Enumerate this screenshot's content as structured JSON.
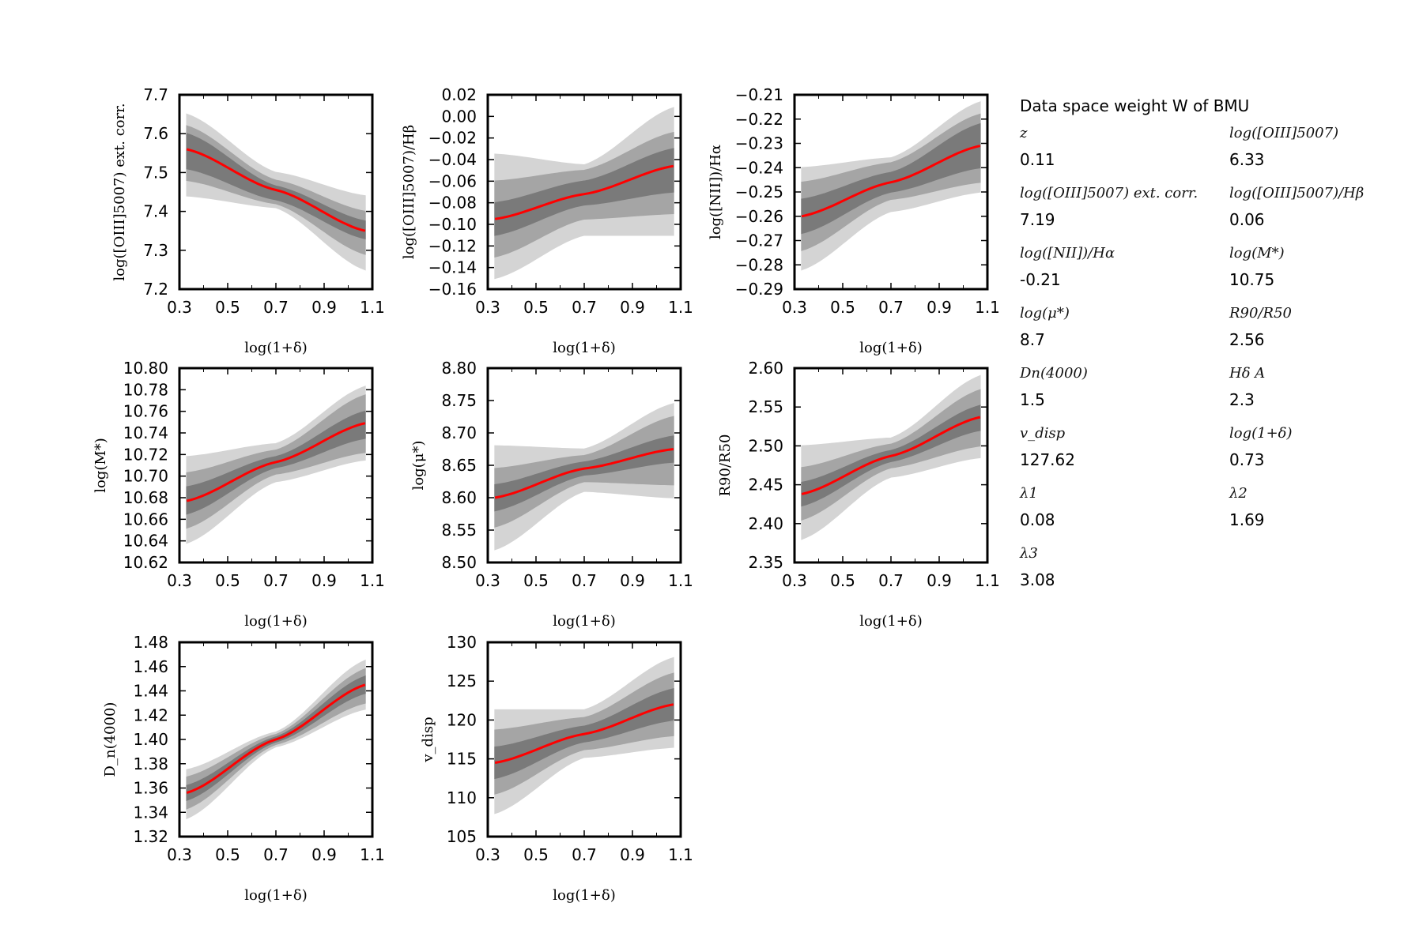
{
  "chart_data": [
    {
      "type": "line",
      "ylabel": "log([OIII]5007) ext. corr.",
      "xlabel": "log(1+δ)",
      "xlim": [
        0.3,
        1.1
      ],
      "xticks": [
        "0.3",
        "0.5",
        "0.7",
        "0.9",
        "1.1"
      ],
      "ylim": [
        7.2,
        7.7
      ],
      "yticks": [
        "7.2",
        "7.3",
        "7.4",
        "7.5",
        "7.6",
        "7.7"
      ],
      "series": [
        {
          "name": "mean",
          "x": [
            0.33,
            0.7,
            1.07
          ],
          "values": [
            7.56,
            7.455,
            7.35
          ]
        }
      ],
      "bands": {
        "x": [
          0.33,
          0.7,
          1.07
        ],
        "s1": {
          "lo": [
            7.51,
            7.43,
            7.33
          ],
          "hi": [
            7.6,
            7.465,
            7.375
          ]
        },
        "s2": {
          "lo": [
            7.48,
            7.42,
            7.29
          ],
          "hi": [
            7.62,
            7.48,
            7.4
          ]
        },
        "s3": {
          "lo": [
            7.44,
            7.41,
            7.25
          ],
          "hi": [
            7.65,
            7.5,
            7.44
          ]
        }
      }
    },
    {
      "type": "line",
      "ylabel": "log([OIII]5007)/Hβ",
      "xlabel": "log(1+δ)",
      "xlim": [
        0.3,
        1.1
      ],
      "xticks": [
        "0.3",
        "0.5",
        "0.7",
        "0.9",
        "1.1"
      ],
      "ylim": [
        -0.16,
        0.02
      ],
      "yticks": [
        "-0.16",
        "-0.14",
        "-0.12",
        "-0.10",
        "-0.08",
        "-0.06",
        "-0.04",
        "-0.02",
        "0.00",
        "0.02"
      ],
      "series": [
        {
          "name": "mean",
          "x": [
            0.33,
            0.7,
            1.07
          ],
          "values": [
            -0.095,
            -0.072,
            -0.046
          ]
        }
      ],
      "bands": {
        "x": [
          0.33,
          0.7,
          1.07
        ],
        "s1": {
          "lo": [
            -0.11,
            -0.082,
            -0.07
          ],
          "hi": [
            -0.08,
            -0.06,
            -0.03
          ]
        },
        "s2": {
          "lo": [
            -0.13,
            -0.095,
            -0.09
          ],
          "hi": [
            -0.06,
            -0.05,
            -0.015
          ]
        },
        "s3": {
          "lo": [
            -0.15,
            -0.11,
            -0.11
          ],
          "hi": [
            -0.035,
            -0.045,
            0.008
          ]
        }
      }
    },
    {
      "type": "line",
      "ylabel": "log([NII])/Hα",
      "xlabel": "log(1+δ)",
      "xlim": [
        0.3,
        1.1
      ],
      "xticks": [
        "0.3",
        "0.5",
        "0.7",
        "0.9",
        "1.1"
      ],
      "ylim": [
        -0.29,
        -0.21
      ],
      "yticks": [
        "-0.29",
        "-0.28",
        "-0.27",
        "-0.26",
        "-0.25",
        "-0.24",
        "-0.23",
        "-0.22",
        "-0.21"
      ],
      "series": [
        {
          "name": "mean",
          "x": [
            0.33,
            0.7,
            1.07
          ],
          "values": [
            -0.26,
            -0.246,
            -0.231
          ]
        }
      ],
      "bands": {
        "x": [
          0.33,
          0.7,
          1.07
        ],
        "s1": {
          "lo": [
            -0.267,
            -0.25,
            -0.24
          ],
          "hi": [
            -0.253,
            -0.242,
            -0.222
          ]
        },
        "s2": {
          "lo": [
            -0.274,
            -0.253,
            -0.246
          ],
          "hi": [
            -0.246,
            -0.238,
            -0.218
          ]
        },
        "s3": {
          "lo": [
            -0.282,
            -0.258,
            -0.25
          ],
          "hi": [
            -0.24,
            -0.236,
            -0.213
          ]
        }
      }
    },
    {
      "type": "line",
      "ylabel": "log(M*)",
      "xlabel": "log(1+δ)",
      "xlim": [
        0.3,
        1.1
      ],
      "xticks": [
        "0.3",
        "0.5",
        "0.7",
        "0.9",
        "1.1"
      ],
      "ylim": [
        10.62,
        10.8
      ],
      "yticks": [
        "10.62",
        "10.64",
        "10.66",
        "10.68",
        "10.70",
        "10.72",
        "10.74",
        "10.76",
        "10.78",
        "10.80"
      ],
      "series": [
        {
          "name": "mean",
          "x": [
            0.33,
            0.7,
            1.07
          ],
          "values": [
            10.677,
            10.713,
            10.749
          ]
        }
      ],
      "bands": {
        "x": [
          0.33,
          0.7,
          1.07
        ],
        "s1": {
          "lo": [
            10.665,
            10.708,
            10.735
          ],
          "hi": [
            10.69,
            10.718,
            10.76
          ]
        },
        "s2": {
          "lo": [
            10.652,
            10.702,
            10.722
          ],
          "hi": [
            10.703,
            10.724,
            10.775
          ]
        },
        "s3": {
          "lo": [
            10.638,
            10.695,
            10.715
          ],
          "hi": [
            10.718,
            10.73,
            10.783
          ]
        }
      }
    },
    {
      "type": "line",
      "ylabel": "log(μ*)",
      "xlabel": "log(1+δ)",
      "xlim": [
        0.3,
        1.1
      ],
      "xticks": [
        "0.3",
        "0.5",
        "0.7",
        "0.9",
        "1.1"
      ],
      "ylim": [
        8.5,
        8.8
      ],
      "yticks": [
        "8.50",
        "8.55",
        "8.60",
        "8.65",
        "8.70",
        "8.75",
        "8.80"
      ],
      "series": [
        {
          "name": "mean",
          "x": [
            0.33,
            0.7,
            1.07
          ],
          "values": [
            8.6,
            8.645,
            8.675
          ]
        }
      ],
      "bands": {
        "x": [
          0.33,
          0.7,
          1.07
        ],
        "s1": {
          "lo": [
            8.58,
            8.635,
            8.655
          ],
          "hi": [
            8.62,
            8.655,
            8.695
          ]
        },
        "s2": {
          "lo": [
            8.555,
            8.625,
            8.62
          ],
          "hi": [
            8.645,
            8.665,
            8.725
          ]
        },
        "s3": {
          "lo": [
            8.52,
            8.61,
            8.6
          ],
          "hi": [
            8.68,
            8.675,
            8.745
          ]
        }
      }
    },
    {
      "type": "line",
      "ylabel": "R90/R50",
      "xlabel": "log(1+δ)",
      "xlim": [
        0.3,
        1.1
      ],
      "xticks": [
        "0.3",
        "0.5",
        "0.7",
        "0.9",
        "1.1"
      ],
      "ylim": [
        2.35,
        2.6
      ],
      "yticks": [
        "2.35",
        "2.40",
        "2.45",
        "2.50",
        "2.55",
        "2.60"
      ],
      "series": [
        {
          "name": "mean",
          "x": [
            0.33,
            0.7,
            1.07
          ],
          "values": [
            2.438,
            2.487,
            2.537
          ]
        }
      ],
      "bands": {
        "x": [
          0.33,
          0.7,
          1.07
        ],
        "s1": {
          "lo": [
            2.423,
            2.48,
            2.52
          ],
          "hi": [
            2.453,
            2.494,
            2.552
          ]
        },
        "s2": {
          "lo": [
            2.405,
            2.472,
            2.5
          ],
          "hi": [
            2.472,
            2.502,
            2.572
          ]
        },
        "s3": {
          "lo": [
            2.38,
            2.46,
            2.485
          ],
          "hi": [
            2.5,
            2.51,
            2.59
          ]
        }
      }
    },
    {
      "type": "line",
      "ylabel": "D_n(4000)",
      "xlabel": "log(1+δ)",
      "xlim": [
        0.3,
        1.1
      ],
      "xticks": [
        "0.3",
        "0.5",
        "0.7",
        "0.9",
        "1.1"
      ],
      "ylim": [
        1.32,
        1.48
      ],
      "yticks": [
        "1.32",
        "1.34",
        "1.36",
        "1.38",
        "1.40",
        "1.42",
        "1.44",
        "1.46",
        "1.48"
      ],
      "series": [
        {
          "name": "mean",
          "x": [
            0.33,
            0.7,
            1.07
          ],
          "values": [
            1.356,
            1.4,
            1.445
          ]
        }
      ],
      "bands": {
        "x": [
          0.33,
          0.7,
          1.07
        ],
        "s1": {
          "lo": [
            1.35,
            1.398,
            1.438
          ],
          "hi": [
            1.362,
            1.402,
            1.452
          ]
        },
        "s2": {
          "lo": [
            1.343,
            1.396,
            1.43
          ],
          "hi": [
            1.369,
            1.404,
            1.458
          ]
        },
        "s3": {
          "lo": [
            1.335,
            1.394,
            1.425
          ],
          "hi": [
            1.375,
            1.406,
            1.465
          ]
        }
      }
    },
    {
      "type": "line",
      "ylabel": "v_disp",
      "xlabel": "log(1+δ)",
      "xlim": [
        0.3,
        1.1
      ],
      "xticks": [
        "0.3",
        "0.5",
        "0.7",
        "0.9",
        "1.1"
      ],
      "ylim": [
        105,
        130
      ],
      "yticks": [
        "105",
        "110",
        "115",
        "120",
        "125",
        "130"
      ],
      "series": [
        {
          "name": "mean",
          "x": [
            0.33,
            0.7,
            1.07
          ],
          "values": [
            114.5,
            118.2,
            122
          ]
        }
      ],
      "bands": {
        "x": [
          0.33,
          0.7,
          1.07
        ],
        "s1": {
          "lo": [
            112.5,
            117.2,
            120
          ],
          "hi": [
            116.5,
            119.2,
            124
          ]
        },
        "s2": {
          "lo": [
            110.5,
            116.2,
            118
          ],
          "hi": [
            118.7,
            120.3,
            126
          ]
        },
        "s3": {
          "lo": [
            108,
            115.2,
            116.5
          ],
          "hi": [
            121.3,
            121.3,
            128
          ]
        }
      }
    }
  ],
  "side_panel": {
    "title": "Data space weight W of BMU",
    "params": [
      {
        "name": "z",
        "value": "0.11"
      },
      {
        "name": "log([OIII]5007)",
        "value": "6.33"
      },
      {
        "name": "log([OIII]5007) ext. corr.",
        "value": "7.19"
      },
      {
        "name": "log([OIII]5007)/Hβ",
        "value": "0.06"
      },
      {
        "name": "log([NII])/Hα",
        "value": "-0.21"
      },
      {
        "name": "log(M*)",
        "value": "10.75"
      },
      {
        "name": "log(μ*)",
        "value": "8.7"
      },
      {
        "name": "R90/R50",
        "value": "2.56"
      },
      {
        "name": "Dn(4000)",
        "value": "1.5"
      },
      {
        "name": "Hδ A",
        "value": "2.3"
      },
      {
        "name": "v_disp",
        "value": "127.62"
      },
      {
        "name": "log(1+δ)",
        "value": "0.73"
      },
      {
        "name": "λ1",
        "value": "0.08"
      },
      {
        "name": "λ2",
        "value": "1.69"
      },
      {
        "name": "λ3",
        "value": "3.08"
      }
    ]
  },
  "colors": {
    "mean_line": "#ff0000",
    "band1": "#7a7a7a",
    "band2": "#a5a5a5",
    "band3": "#d4d4d4",
    "axis": "#000000"
  }
}
